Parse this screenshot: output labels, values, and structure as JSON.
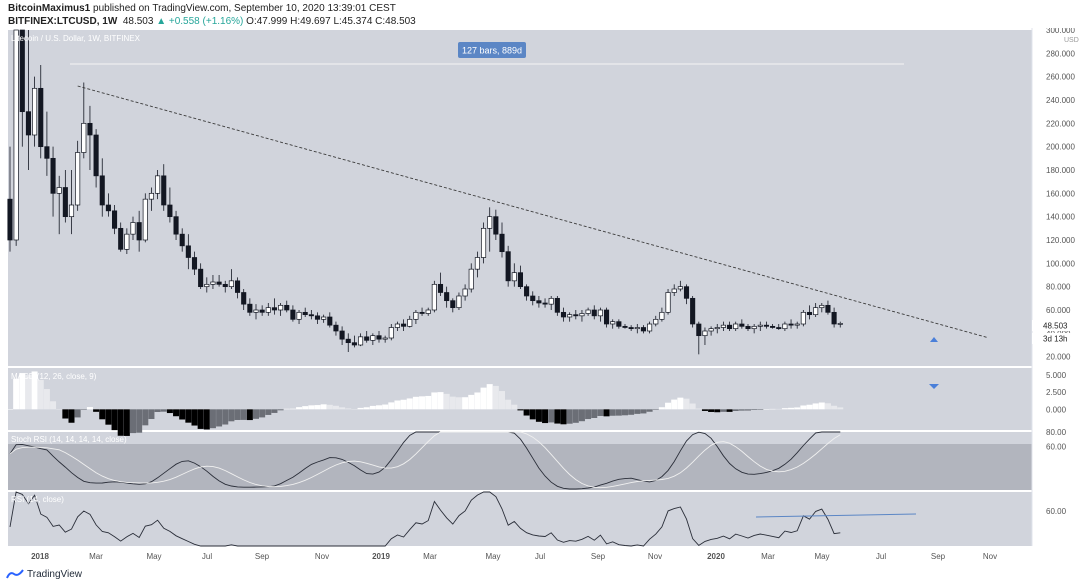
{
  "header": {
    "author": "BitcoinMaximus1",
    "published_text": " published on TradingView.com, September 10, 2020 13:39:01 CEST",
    "symbol": "BITFINEX:LTCUSD, 1W",
    "last": "48.503",
    "change": "▲ +0.558 (+1.16%)",
    "ohlc": "O:47.999 H:49.697 L:45.374 C:48.503"
  },
  "footer": {
    "brand": "TradingView"
  },
  "chart_data": [
    {
      "type": "candlestick",
      "title": "Litecoin / U.S. Dollar, 1W, BITFINEX",
      "xlabel": "",
      "ylabel": "",
      "x_ticks": [
        "2018",
        "Mar",
        "May",
        "Jul",
        "Sep",
        "Nov",
        "2019",
        "Mar",
        "May",
        "Jul",
        "Sep",
        "Nov",
        "2020",
        "Mar",
        "May",
        "Jul",
        "Sep",
        "Nov"
      ],
      "y_ticks": [
        "20.000",
        "40.000",
        "60.000",
        "80.000",
        "100.000",
        "120.000",
        "140.000",
        "160.000",
        "180.000",
        "200.000",
        "220.000",
        "240.000",
        "260.000",
        "280.000",
        "300.000"
      ],
      "y_unit": "USD",
      "ylim": [
        12,
        300
      ],
      "price_label": "48.503",
      "countdown_label": "3d 13h",
      "range_measure_label": "127 bars, 889d",
      "trendline": {
        "style": "dashed",
        "start": {
          "bar": 11,
          "price": 252
        },
        "end": {
          "bar": 150,
          "price": 38
        }
      },
      "ohlc_weekly": [
        [
          155,
          200,
          110,
          120
        ],
        [
          120,
          350,
          115,
          300
        ],
        [
          300,
          330,
          200,
          230
        ],
        [
          230,
          300,
          180,
          210
        ],
        [
          210,
          260,
          200,
          250
        ],
        [
          250,
          270,
          190,
          200
        ],
        [
          200,
          230,
          175,
          190
        ],
        [
          190,
          200,
          140,
          160
        ],
        [
          160,
          175,
          125,
          165
        ],
        [
          165,
          180,
          135,
          140
        ],
        [
          140,
          180,
          125,
          150
        ],
        [
          150,
          205,
          145,
          195
        ],
        [
          195,
          255,
          190,
          220
        ],
        [
          220,
          235,
          180,
          210
        ],
        [
          210,
          215,
          165,
          175
        ],
        [
          175,
          190,
          140,
          150
        ],
        [
          150,
          160,
          140,
          145
        ],
        [
          145,
          150,
          125,
          130
        ],
        [
          130,
          135,
          110,
          112
        ],
        [
          112,
          130,
          108,
          125
        ],
        [
          125,
          140,
          120,
          135
        ],
        [
          135,
          145,
          110,
          120
        ],
        [
          120,
          160,
          118,
          155
        ],
        [
          155,
          165,
          145,
          160
        ],
        [
          160,
          180,
          155,
          175
        ],
        [
          175,
          185,
          145,
          150
        ],
        [
          150,
          165,
          135,
          140
        ],
        [
          140,
          145,
          120,
          125
        ],
        [
          125,
          130,
          110,
          115
        ],
        [
          115,
          125,
          95,
          105
        ],
        [
          105,
          110,
          90,
          95
        ],
        [
          95,
          100,
          78,
          80
        ],
        [
          80,
          88,
          75,
          82
        ],
        [
          82,
          90,
          78,
          84
        ],
        [
          84,
          90,
          80,
          82
        ],
        [
          82,
          85,
          75,
          80
        ],
        [
          80,
          95,
          78,
          85
        ],
        [
          85,
          88,
          70,
          75
        ],
        [
          75,
          78,
          60,
          65
        ],
        [
          65,
          70,
          55,
          58
        ],
        [
          58,
          65,
          52,
          60
        ],
        [
          60,
          64,
          55,
          58
        ],
        [
          58,
          66,
          55,
          62
        ],
        [
          62,
          70,
          56,
          60
        ],
        [
          60,
          66,
          55,
          64
        ],
        [
          64,
          68,
          58,
          60
        ],
        [
          60,
          64,
          50,
          52
        ],
        [
          52,
          60,
          48,
          58
        ],
        [
          58,
          62,
          54,
          56
        ],
        [
          56,
          60,
          52,
          55
        ],
        [
          55,
          58,
          48,
          52
        ],
        [
          52,
          56,
          49,
          54
        ],
        [
          54,
          58,
          45,
          47
        ],
        [
          47,
          50,
          38,
          42
        ],
        [
          42,
          46,
          30,
          35
        ],
        [
          35,
          40,
          24,
          32
        ],
        [
          32,
          38,
          28,
          30
        ],
        [
          30,
          40,
          29,
          37
        ],
        [
          37,
          42,
          32,
          34
        ],
        [
          34,
          40,
          30,
          38
        ],
        [
          38,
          42,
          32,
          35
        ],
        [
          35,
          38,
          32,
          36
        ],
        [
          36,
          48,
          34,
          45
        ],
        [
          45,
          50,
          42,
          48
        ],
        [
          48,
          52,
          42,
          46
        ],
        [
          46,
          55,
          45,
          52
        ],
        [
          52,
          60,
          48,
          58
        ],
        [
          58,
          62,
          55,
          57
        ],
        [
          57,
          62,
          55,
          60
        ],
        [
          60,
          85,
          58,
          82
        ],
        [
          82,
          92,
          72,
          75
        ],
        [
          75,
          80,
          62,
          68
        ],
        [
          68,
          70,
          58,
          62
        ],
        [
          62,
          75,
          60,
          72
        ],
        [
          72,
          82,
          68,
          78
        ],
        [
          78,
          100,
          75,
          95
        ],
        [
          95,
          110,
          88,
          105
        ],
        [
          105,
          135,
          100,
          130
        ],
        [
          130,
          148,
          110,
          140
        ],
        [
          140,
          146,
          120,
          125
        ],
        [
          125,
          135,
          105,
          110
        ],
        [
          110,
          115,
          80,
          85
        ],
        [
          85,
          100,
          80,
          92
        ],
        [
          92,
          98,
          78,
          80
        ],
        [
          80,
          82,
          68,
          72
        ],
        [
          72,
          76,
          64,
          68
        ],
        [
          68,
          72,
          62,
          66
        ],
        [
          66,
          70,
          62,
          65
        ],
        [
          65,
          72,
          60,
          70
        ],
        [
          70,
          72,
          55,
          58
        ],
        [
          58,
          62,
          50,
          54
        ],
        [
          54,
          58,
          50,
          56
        ],
        [
          56,
          60,
          52,
          55
        ],
        [
          55,
          60,
          50,
          57
        ],
        [
          57,
          62,
          55,
          60
        ],
        [
          60,
          64,
          52,
          55
        ],
        [
          55,
          62,
          50,
          60
        ],
        [
          60,
          62,
          45,
          48
        ],
        [
          48,
          52,
          44,
          50
        ],
        [
          50,
          52,
          44,
          46
        ],
        [
          46,
          48,
          44,
          45
        ],
        [
          45,
          47,
          42,
          44
        ],
        [
          44,
          48,
          40,
          45
        ],
        [
          45,
          47,
          40,
          42
        ],
        [
          42,
          50,
          40,
          48
        ],
        [
          48,
          55,
          46,
          52
        ],
        [
          52,
          62,
          50,
          58
        ],
        [
          58,
          78,
          56,
          75
        ],
        [
          75,
          82,
          72,
          78
        ],
        [
          78,
          85,
          76,
          80
        ],
        [
          80,
          82,
          65,
          70
        ],
        [
          70,
          72,
          45,
          48
        ],
        [
          48,
          50,
          22,
          38
        ],
        [
          38,
          45,
          30,
          42
        ],
        [
          42,
          46,
          38,
          44
        ],
        [
          44,
          48,
          40,
          45
        ],
        [
          45,
          50,
          42,
          47
        ],
        [
          47,
          50,
          42,
          44
        ],
        [
          44,
          50,
          42,
          48
        ],
        [
          48,
          52,
          44,
          46
        ],
        [
          46,
          48,
          42,
          44
        ],
        [
          44,
          48,
          40,
          46
        ],
        [
          46,
          50,
          42,
          47
        ],
        [
          47,
          50,
          44,
          46
        ],
        [
          46,
          48,
          44,
          45
        ],
        [
          45,
          48,
          43,
          44
        ],
        [
          44,
          50,
          42,
          48
        ],
        [
          48,
          52,
          44,
          47
        ],
        [
          47,
          50,
          44,
          48
        ],
        [
          48,
          60,
          46,
          58
        ],
        [
          58,
          64,
          52,
          56
        ],
        [
          56,
          66,
          54,
          62
        ],
        [
          62,
          66,
          58,
          64
        ],
        [
          64,
          68,
          56,
          58
        ],
        [
          58,
          62,
          45,
          48
        ],
        [
          48,
          50,
          45,
          48.5
        ]
      ]
    },
    {
      "type": "histogram",
      "title": "MACD (12, 26, close, 9)",
      "y_ticks": [
        "5.000",
        "2.500",
        "0.000"
      ],
      "ylim": [
        -3,
        6
      ]
    },
    {
      "type": "line",
      "title": "Stoch RSI (14, 14, 14, 14, close)",
      "y_ticks": [
        "80.00",
        "60.00"
      ],
      "ylim": [
        0,
        100
      ],
      "band": [
        20,
        80
      ]
    },
    {
      "type": "line",
      "title": "RSI (14, close)",
      "y_ticks": [
        "60.00"
      ],
      "ylim": [
        38,
        72
      ]
    }
  ]
}
